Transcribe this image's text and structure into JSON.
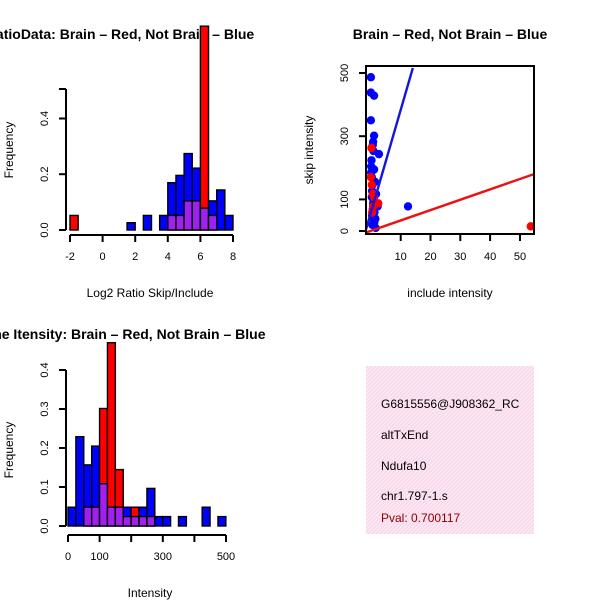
{
  "colors": {
    "red": "#ff0000",
    "blue": "#0000ff",
    "overlap": "#a020f0",
    "line_red": "#ee1111",
    "line_blue": "#1515dd",
    "info_bg": "#f8d8ea",
    "pval": "#8b0000"
  },
  "chart_data": [
    {
      "id": "ratio_hist",
      "type": "bar",
      "title": "RatioData: Brain – Red, Not Brain – Blue",
      "xlabel": "Log2 Ratio Skip/Include",
      "ylabel": "Frequency",
      "xlim": [
        -2,
        8
      ],
      "ylim": [
        0,
        0.5
      ],
      "xticks": [
        "-2",
        "0",
        "2",
        "4",
        "6",
        "8"
      ],
      "yticks": [
        "0.0",
        "0.2",
        "0.4"
      ],
      "bin_edges": [
        -2,
        -1.5,
        -1,
        -0.5,
        0,
        0.5,
        1,
        1.5,
        2,
        2.5,
        3,
        3.5,
        4,
        4.5,
        5,
        5.5,
        6,
        6.5,
        7,
        7.5,
        8
      ],
      "series": [
        {
          "name": "Not Brain",
          "color": "blue",
          "values": [
            0,
            0,
            0,
            0,
            0,
            0,
            0,
            0.02,
            0,
            0.04,
            0,
            0.04,
            0.13,
            0.15,
            0.21,
            0.17,
            0.06,
            0.08,
            0.11,
            0.04
          ]
        },
        {
          "name": "Brain",
          "color": "red",
          "values": [
            0.04,
            0,
            0,
            0,
            0,
            0,
            0,
            0,
            0,
            0,
            0,
            0,
            0.04,
            0.04,
            0.08,
            0.08,
            0.56,
            0.04,
            0,
            0
          ]
        }
      ]
    },
    {
      "id": "scatter",
      "type": "scatter",
      "title": "Brain – Red, Not Brain – Blue",
      "xlabel": "include intensity",
      "ylabel": "skip intensity",
      "xlim": [
        1,
        53
      ],
      "ylim": [
        0,
        530
      ],
      "xticks": [
        "10",
        "20",
        "30",
        "40",
        "50"
      ],
      "yticks": [
        "0",
        "100",
        "300",
        "500"
      ],
      "series": [
        {
          "name": "Not Brain",
          "color": "blue",
          "points": [
            [
              2.5,
              500
            ],
            [
              2.5,
              450
            ],
            [
              3.5,
              440
            ],
            [
              2.5,
              360
            ],
            [
              3.5,
              310
            ],
            [
              3.2,
              290
            ],
            [
              2.8,
              270
            ],
            [
              2.6,
              210
            ],
            [
              3.5,
              200
            ],
            [
              2.8,
              175
            ],
            [
              5,
              250
            ],
            [
              3.0,
              150
            ],
            [
              2.9,
              130
            ],
            [
              2.8,
              110
            ],
            [
              3.2,
              90
            ],
            [
              3.1,
              70
            ],
            [
              3.6,
              60
            ],
            [
              2.9,
              50
            ],
            [
              3.2,
              40
            ],
            [
              3.6,
              30
            ],
            [
              3.0,
              20
            ],
            [
              4.0,
              10
            ],
            [
              3.4,
              100
            ],
            [
              4.6,
              80
            ],
            [
              14,
              80
            ],
            [
              2.7,
              230
            ],
            [
              3.1,
              280
            ],
            [
              3.8,
              160
            ],
            [
              4.1,
              120
            ],
            [
              3.3,
              260
            ],
            [
              2.6,
              190
            ],
            [
              3.9,
              40
            ]
          ]
        },
        {
          "name": "Brain",
          "color": "red",
          "points": [
            [
              2.5,
              175
            ],
            [
              2.8,
              150
            ],
            [
              3.1,
              120
            ],
            [
              3.5,
              110
            ],
            [
              4.8,
              90
            ],
            [
              3.2,
              80
            ],
            [
              2.9,
              60
            ],
            [
              52,
              15
            ],
            [
              2.7,
              270
            ]
          ]
        }
      ],
      "lines": [
        {
          "name": "Not Brain fit",
          "color": "line_blue",
          "x": [
            1,
            15.5
          ],
          "y": [
            5,
            530
          ]
        },
        {
          "name": "Brain fit",
          "color": "line_red",
          "x": [
            1,
            53
          ],
          "y": [
            -5,
            185
          ]
        }
      ]
    },
    {
      "id": "intensity_hist",
      "type": "bar",
      "title": "Gene Itensity: Brain – Red, Not Brain – Blue",
      "xlabel": "Intensity",
      "ylabel": "Frequency",
      "xlim": [
        0,
        510
      ],
      "ylim": [
        0,
        0.4
      ],
      "xticks": [
        "0",
        "100",
        "300",
        "500"
      ],
      "yticks": [
        "0.0",
        "0.1",
        "0.2",
        "0.3",
        "0.4"
      ],
      "bin_edges": [
        0,
        25,
        50,
        75,
        100,
        125,
        150,
        175,
        200,
        225,
        250,
        275,
        300,
        325,
        350,
        375,
        400,
        425,
        450,
        475,
        500
      ],
      "series": [
        {
          "name": "Not Brain",
          "color": "blue",
          "values": [
            0.04,
            0.19,
            0.13,
            0.17,
            0.09,
            0.04,
            0.04,
            0.04,
            0.02,
            0.04,
            0.08,
            0.02,
            0.02,
            0,
            0.02,
            0,
            0,
            0.04,
            0,
            0.02
          ]
        },
        {
          "name": "Brain",
          "color": "red",
          "values": [
            0,
            0,
            0.04,
            0.04,
            0.25,
            0.39,
            0.12,
            0.02,
            0.04,
            0.02,
            0.02,
            0,
            0,
            0,
            0,
            0,
            0,
            0,
            0,
            0
          ]
        }
      ]
    }
  ],
  "info_box": {
    "probe_id": "G6815556@J908362_RC",
    "event_type": "altTxEnd",
    "gene": "Ndufa10",
    "location": "chr1.797-1.s",
    "pval": "Pval: 0.700117"
  }
}
